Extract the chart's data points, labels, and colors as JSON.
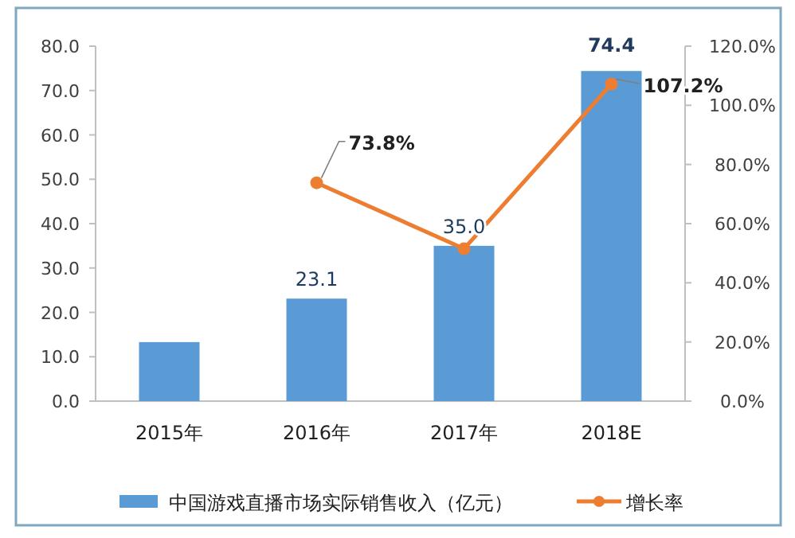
{
  "chart_data": {
    "type": "bar",
    "categories": [
      "2015年",
      "2016年",
      "2017年",
      "2018E"
    ],
    "series": [
      {
        "name": "中国游戏直播市场实际销售收入（亿元）",
        "color": "#5b9bd5",
        "values": [
          13.3,
          23.1,
          35.0,
          74.4
        ],
        "value_labels": [
          null,
          "23.1",
          "35.0",
          "74.4"
        ]
      },
      {
        "name": "增长率",
        "type": "line",
        "axis": "y2",
        "color": "#ed7d31",
        "values": [
          null,
          73.8,
          51.5,
          107.2
        ],
        "value_labels": [
          null,
          "73.8%",
          null,
          "107.2%"
        ]
      }
    ],
    "ylim": [
      0,
      80
    ],
    "yticks": [
      {
        "value": 0,
        "label": "0.0"
      },
      {
        "value": 10,
        "label": "10.0"
      },
      {
        "value": 20,
        "label": "20.0"
      },
      {
        "value": 30,
        "label": "30.0"
      },
      {
        "value": 40,
        "label": "40.0"
      },
      {
        "value": 50,
        "label": "50.0"
      },
      {
        "value": 60,
        "label": "60.0"
      },
      {
        "value": 70,
        "label": "70.0"
      },
      {
        "value": 80,
        "label": "80.0"
      }
    ],
    "y2lim": [
      0,
      120
    ],
    "y2ticks": [
      {
        "value": 0,
        "label": "0.0%"
      },
      {
        "value": 20,
        "label": "20.0%"
      },
      {
        "value": 40,
        "label": "40.0%"
      },
      {
        "value": 60,
        "label": "60.0%"
      },
      {
        "value": 80,
        "label": "80.0%"
      },
      {
        "value": 100,
        "label": "100.0%"
      },
      {
        "value": 120,
        "label": "120.0%"
      }
    ],
    "marker": "circle",
    "legend": "bottom"
  }
}
